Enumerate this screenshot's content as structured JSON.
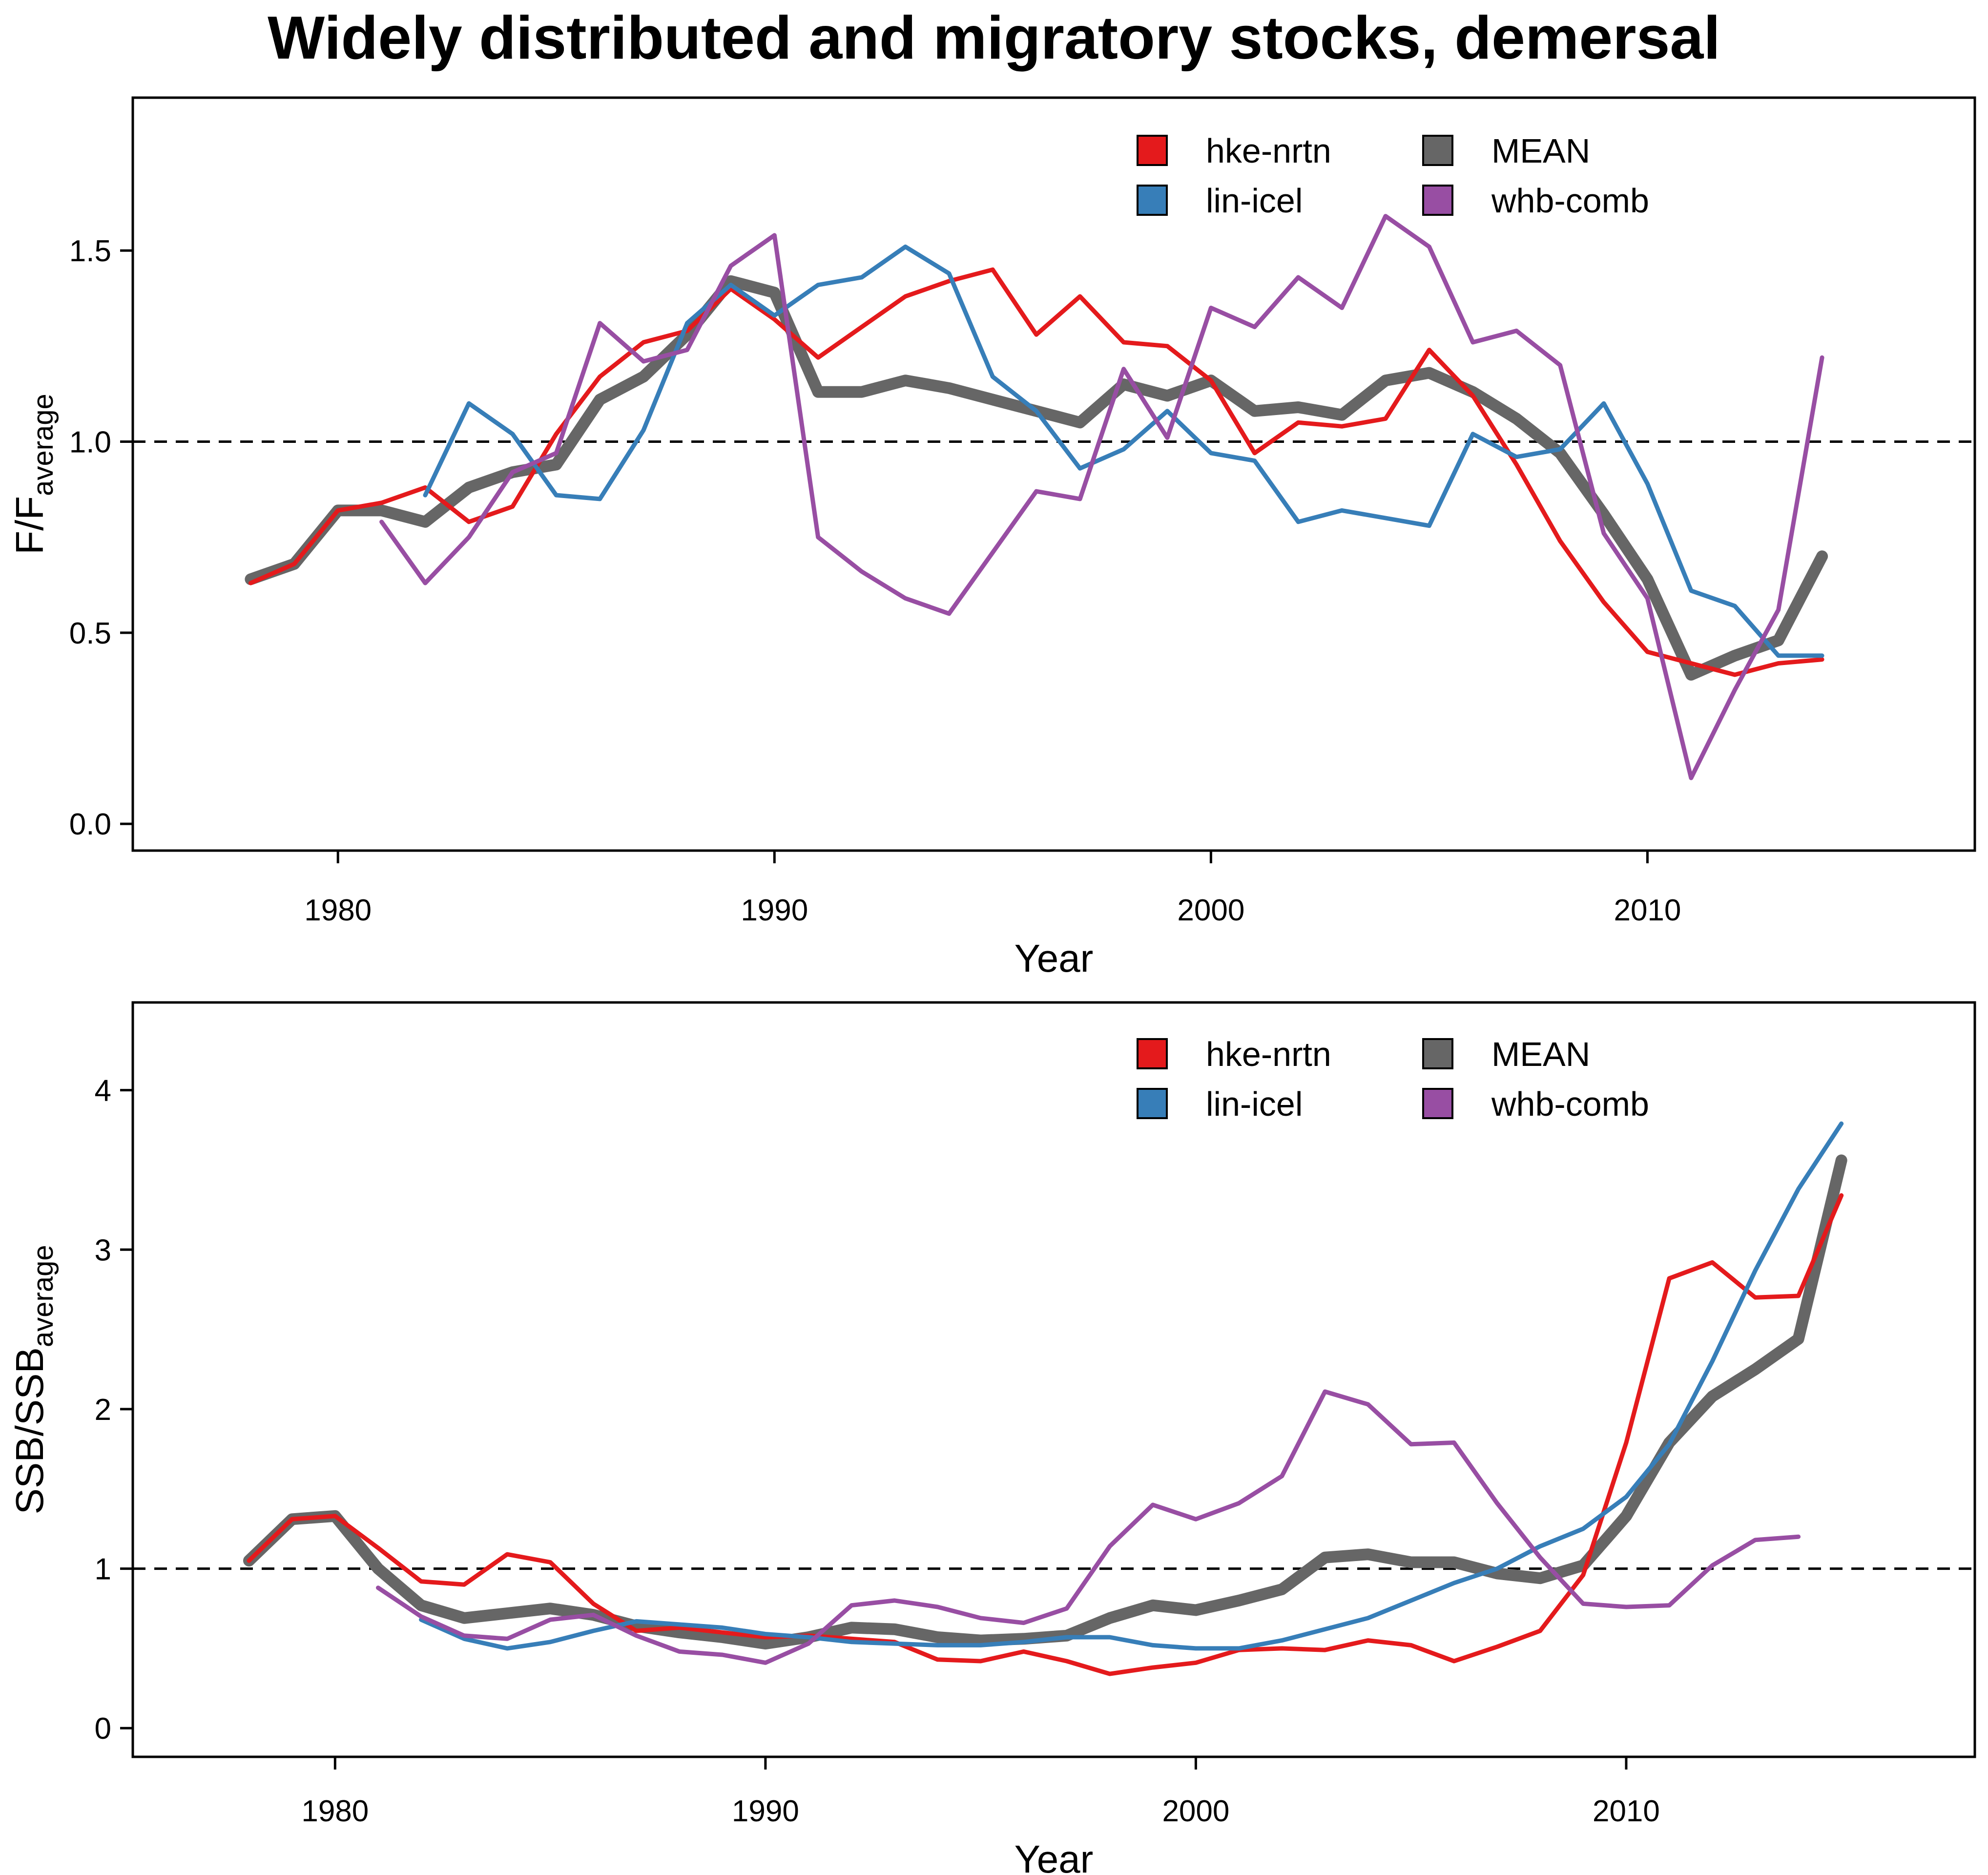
{
  "figure": {
    "title": "Widely distributed and migratory stocks, demersal"
  },
  "colors": {
    "hke-nrtn": "#e41a1c",
    "lin-icel": "#377eb8",
    "MEAN": "#666666",
    "whb-comb": "#984ea3"
  },
  "chart_data": [
    {
      "type": "line",
      "ylabel_main": "F/F",
      "ylabel_sub": "average",
      "xlabel": "Year",
      "xlim": [
        1975.3,
        2017.5
      ],
      "ylim": [
        -0.07,
        1.9
      ],
      "xticks": [
        1980,
        1990,
        2000,
        2010
      ],
      "yticks": [
        0.0,
        0.5,
        1.0,
        1.5
      ],
      "ytick_labels": [
        "0.0",
        "0.5",
        "1.0",
        "1.5"
      ],
      "reference_line": 1.0,
      "grid": false,
      "legend_position": "top-right",
      "legend": [
        {
          "label": "hke-nrtn",
          "series": "hke-nrtn"
        },
        {
          "label": "MEAN",
          "series": "MEAN"
        },
        {
          "label": "lin-icel",
          "series": "lin-icel"
        },
        {
          "label": "whb-comb",
          "series": "whb-comb"
        }
      ],
      "series": [
        {
          "name": "hke-nrtn",
          "x": [
            1978,
            1979,
            1980,
            1981,
            1982,
            1983,
            1984,
            1985,
            1986,
            1987,
            1988,
            1989,
            1990,
            1991,
            1992,
            1993,
            1994,
            1995,
            1996,
            1997,
            1998,
            1999,
            2000,
            2001,
            2002,
            2003,
            2004,
            2005,
            2006,
            2007,
            2008,
            2009,
            2010,
            2011,
            2012,
            2013,
            2014
          ],
          "y": [
            0.63,
            0.68,
            0.82,
            0.84,
            0.88,
            0.79,
            0.83,
            1.02,
            1.17,
            1.26,
            1.29,
            1.4,
            1.32,
            1.22,
            1.3,
            1.38,
            1.42,
            1.45,
            1.28,
            1.38,
            1.26,
            1.25,
            1.16,
            0.97,
            1.05,
            1.04,
            1.06,
            1.24,
            1.12,
            0.94,
            0.74,
            0.58,
            0.45,
            0.42,
            0.39,
            0.42,
            0.43
          ]
        },
        {
          "name": "lin-icel",
          "x": [
            1982,
            1983,
            1984,
            1985,
            1986,
            1987,
            1988,
            1989,
            1990,
            1991,
            1992,
            1993,
            1994,
            1995,
            1996,
            1997,
            1998,
            1999,
            2000,
            2001,
            2002,
            2003,
            2004,
            2005,
            2006,
            2007,
            2008,
            2009,
            2010,
            2011,
            2012,
            2013,
            2014
          ],
          "y": [
            0.86,
            1.1,
            1.02,
            0.86,
            0.85,
            1.03,
            1.31,
            1.41,
            1.33,
            1.41,
            1.43,
            1.51,
            1.44,
            1.17,
            1.08,
            0.93,
            0.98,
            1.08,
            0.97,
            0.95,
            0.79,
            0.82,
            0.8,
            0.78,
            1.02,
            0.96,
            0.98,
            1.1,
            0.89,
            0.61,
            0.57,
            0.44,
            0.44
          ]
        },
        {
          "name": "MEAN",
          "x": [
            1978,
            1979,
            1980,
            1981,
            1982,
            1983,
            1984,
            1985,
            1986,
            1987,
            1988,
            1989,
            1990,
            1991,
            1992,
            1993,
            1994,
            1995,
            1996,
            1997,
            1998,
            1999,
            2000,
            2001,
            2002,
            2003,
            2004,
            2005,
            2006,
            2007,
            2008,
            2009,
            2010,
            2011,
            2012,
            2013,
            2014
          ],
          "y": [
            0.64,
            0.68,
            0.82,
            0.82,
            0.79,
            0.88,
            0.92,
            0.94,
            1.11,
            1.17,
            1.28,
            1.42,
            1.39,
            1.13,
            1.13,
            1.16,
            1.14,
            1.11,
            1.08,
            1.05,
            1.15,
            1.12,
            1.16,
            1.08,
            1.09,
            1.07,
            1.16,
            1.18,
            1.13,
            1.06,
            0.97,
            0.81,
            0.64,
            0.39,
            0.44,
            0.48,
            0.7
          ]
        },
        {
          "name": "whb-comb",
          "x": [
            1981,
            1982,
            1983,
            1984,
            1985,
            1986,
            1987,
            1988,
            1989,
            1990,
            1991,
            1992,
            1993,
            1994,
            1995,
            1996,
            1997,
            1998,
            1999,
            2000,
            2001,
            2002,
            2003,
            2004,
            2005,
            2006,
            2007,
            2008,
            2009,
            2010,
            2011,
            2012,
            2013,
            2014
          ],
          "y": [
            0.79,
            0.63,
            0.75,
            0.92,
            0.97,
            1.31,
            1.21,
            1.24,
            1.46,
            1.54,
            0.75,
            0.66,
            0.59,
            0.55,
            0.71,
            0.87,
            0.85,
            1.19,
            1.01,
            1.35,
            1.3,
            1.43,
            1.35,
            1.59,
            1.51,
            1.26,
            1.29,
            1.2,
            0.76,
            0.59,
            0.12,
            0.35,
            0.56,
            1.22
          ]
        }
      ]
    },
    {
      "type": "line",
      "ylabel_main": "SSB/SSB",
      "ylabel_sub": "average",
      "xlabel": "Year",
      "xlim": [
        1975.3,
        2018.1
      ],
      "ylim": [
        -0.18,
        4.55
      ],
      "xticks": [
        1980,
        1990,
        2000,
        2010
      ],
      "yticks": [
        0,
        1,
        2,
        3,
        4
      ],
      "ytick_labels": [
        "0",
        "1",
        "2",
        "3",
        "4"
      ],
      "reference_line": 1.0,
      "grid": false,
      "legend_position": "top-right",
      "legend": [
        {
          "label": "hke-nrtn",
          "series": "hke-nrtn"
        },
        {
          "label": "MEAN",
          "series": "MEAN"
        },
        {
          "label": "lin-icel",
          "series": "lin-icel"
        },
        {
          "label": "whb-comb",
          "series": "whb-comb"
        }
      ],
      "series": [
        {
          "name": "hke-nrtn",
          "x": [
            1978,
            1979,
            1980,
            1981,
            1982,
            1983,
            1984,
            1985,
            1986,
            1987,
            1988,
            1989,
            1990,
            1991,
            1992,
            1993,
            1994,
            1995,
            1996,
            1997,
            1998,
            1999,
            2000,
            2001,
            2002,
            2003,
            2004,
            2005,
            2006,
            2007,
            2008,
            2009,
            2010,
            2011,
            2012,
            2013,
            2014,
            2015
          ],
          "y": [
            1.05,
            1.31,
            1.33,
            1.13,
            0.92,
            0.9,
            1.09,
            1.04,
            0.78,
            0.61,
            0.63,
            0.6,
            0.57,
            0.58,
            0.56,
            0.54,
            0.43,
            0.42,
            0.48,
            0.42,
            0.34,
            0.38,
            0.41,
            0.49,
            0.5,
            0.49,
            0.55,
            0.52,
            0.42,
            0.51,
            0.61,
            0.96,
            1.79,
            2.82,
            2.92,
            2.7,
            2.71,
            3.34
          ]
        },
        {
          "name": "lin-icel",
          "x": [
            1982,
            1983,
            1984,
            1985,
            1986,
            1987,
            1988,
            1989,
            1990,
            1991,
            1992,
            1993,
            1994,
            1995,
            1996,
            1997,
            1998,
            1999,
            2000,
            2001,
            2002,
            2003,
            2004,
            2005,
            2006,
            2007,
            2008,
            2009,
            2010,
            2011,
            2012,
            2013,
            2014,
            2015
          ],
          "y": [
            0.68,
            0.56,
            0.5,
            0.54,
            0.61,
            0.67,
            0.65,
            0.63,
            0.59,
            0.57,
            0.54,
            0.53,
            0.52,
            0.52,
            0.54,
            0.57,
            0.57,
            0.52,
            0.5,
            0.5,
            0.55,
            0.62,
            0.69,
            0.8,
            0.91,
            1.0,
            1.14,
            1.25,
            1.45,
            1.78,
            2.3,
            2.87,
            3.38,
            3.79
          ]
        },
        {
          "name": "MEAN",
          "x": [
            1978,
            1979,
            1980,
            1981,
            1982,
            1983,
            1984,
            1985,
            1986,
            1987,
            1988,
            1989,
            1990,
            1991,
            1992,
            1993,
            1994,
            1995,
            1996,
            1997,
            1998,
            1999,
            2000,
            2001,
            2002,
            2003,
            2004,
            2005,
            2006,
            2007,
            2008,
            2009,
            2010,
            2011,
            2012,
            2013,
            2014,
            2015
          ],
          "y": [
            1.05,
            1.31,
            1.33,
            1.0,
            0.77,
            0.69,
            0.72,
            0.75,
            0.71,
            0.64,
            0.6,
            0.57,
            0.53,
            0.57,
            0.63,
            0.62,
            0.57,
            0.55,
            0.56,
            0.58,
            0.69,
            0.77,
            0.74,
            0.8,
            0.87,
            1.07,
            1.09,
            1.04,
            1.04,
            0.97,
            0.94,
            1.02,
            1.33,
            1.79,
            2.08,
            2.25,
            2.44,
            3.56
          ]
        },
        {
          "name": "whb-comb",
          "x": [
            1981,
            1982,
            1983,
            1984,
            1985,
            1986,
            1987,
            1988,
            1989,
            1990,
            1991,
            1992,
            1993,
            1994,
            1995,
            1996,
            1997,
            1998,
            1999,
            2000,
            2001,
            2002,
            2003,
            2004,
            2005,
            2006,
            2007,
            2008,
            2009,
            2010,
            2011,
            2012,
            2013,
            2014
          ],
          "y": [
            0.88,
            0.7,
            0.58,
            0.56,
            0.68,
            0.71,
            0.58,
            0.48,
            0.46,
            0.41,
            0.53,
            0.77,
            0.8,
            0.76,
            0.69,
            0.66,
            0.75,
            1.14,
            1.4,
            1.31,
            1.41,
            1.58,
            2.11,
            2.03,
            1.78,
            1.79,
            1.41,
            1.07,
            0.78,
            0.76,
            0.77,
            1.02,
            1.18,
            1.2
          ]
        }
      ]
    }
  ]
}
